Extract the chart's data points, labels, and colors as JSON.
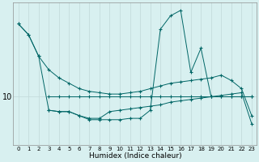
{
  "xlabel": "Humidex (Indice chaleur)",
  "background_color": "#d8f0f0",
  "line_color": "#006666",
  "grid_color": "#c0d8d8",
  "xlim": [
    -0.5,
    23.5
  ],
  "ylim": [
    8.2,
    13.5
  ],
  "x_ticks": [
    0,
    1,
    2,
    3,
    4,
    5,
    6,
    7,
    8,
    9,
    10,
    11,
    12,
    13,
    14,
    15,
    16,
    17,
    18,
    19,
    20,
    21,
    22,
    23
  ],
  "y_ticks": [
    10
  ],
  "line1_x": [
    0,
    1,
    2,
    3,
    4,
    5,
    6,
    7,
    8,
    9,
    10,
    11,
    12,
    13,
    14,
    15,
    16,
    17,
    18,
    19,
    20,
    21,
    22,
    23
  ],
  "line1_y": [
    12.7,
    12.3,
    11.5,
    11.0,
    10.7,
    10.5,
    10.3,
    10.2,
    10.15,
    10.1,
    10.1,
    10.15,
    10.2,
    10.3,
    10.4,
    10.5,
    10.55,
    10.6,
    10.65,
    10.7,
    10.8,
    10.6,
    10.3,
    9.3
  ],
  "line2_x": [
    3,
    4,
    5,
    6,
    7,
    8,
    9,
    10,
    11,
    12,
    13,
    14,
    15,
    16,
    17,
    18,
    19,
    20,
    21,
    22,
    23
  ],
  "line2_y": [
    10.0,
    10.0,
    10.0,
    10.0,
    10.0,
    10.0,
    10.0,
    10.0,
    10.0,
    10.0,
    10.0,
    10.0,
    10.0,
    10.0,
    10.0,
    10.0,
    10.0,
    10.0,
    10.0,
    10.0,
    10.0
  ],
  "line3_x": [
    0,
    1,
    2,
    3,
    4,
    5,
    6,
    7,
    8,
    9,
    10,
    11,
    12,
    13,
    14,
    15,
    16,
    17,
    18,
    19,
    20,
    21,
    22,
    23
  ],
  "line3_y": [
    12.7,
    12.3,
    11.5,
    9.5,
    9.45,
    9.45,
    9.3,
    9.2,
    9.2,
    9.45,
    9.5,
    9.55,
    9.6,
    9.65,
    9.7,
    9.8,
    9.85,
    9.9,
    9.95,
    10.0,
    10.05,
    10.1,
    10.15,
    9.0
  ],
  "line4_x": [
    3,
    4,
    5,
    6,
    7,
    8,
    9,
    10,
    11,
    12,
    13,
    14,
    15,
    16,
    17,
    18,
    19,
    20,
    21,
    22,
    23
  ],
  "line4_y": [
    9.5,
    9.45,
    9.45,
    9.3,
    9.15,
    9.15,
    9.15,
    9.15,
    9.2,
    9.2,
    9.5,
    12.5,
    13.0,
    13.2,
    10.9,
    11.8,
    10.0,
    10.0,
    10.0,
    10.0,
    10.0
  ]
}
